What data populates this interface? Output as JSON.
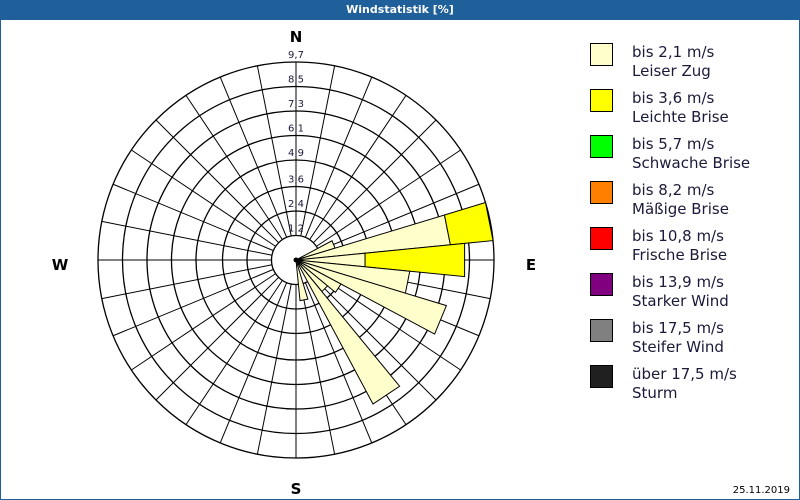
{
  "chart_data": {
    "type": "windrose",
    "title": "Windstatistik [%]",
    "date": "25.11.2019",
    "compass": {
      "n": "N",
      "e": "E",
      "s": "S",
      "w": "W"
    },
    "rmax": 9.7,
    "ring_labels": [
      "1,2",
      "2,4",
      "3,6",
      "4,9",
      "6,1",
      "7,3",
      "8,5",
      "9,7"
    ],
    "ring_values": [
      1.2,
      2.4,
      3.6,
      4.9,
      6.1,
      7.3,
      8.5,
      9.7
    ],
    "sectors": 32,
    "directions_deg": [
      67.5,
      78.75,
      90,
      101.25,
      112.5,
      123.75,
      135,
      146.25,
      168.75
    ],
    "series": [
      {
        "name": "bis 2,1 m/s",
        "color": "#ffffcc",
        "values": [
          2.0,
          7.6,
          3.4,
          5.6,
          7.7,
          2.5,
          2.0,
          8.0,
          2.0
        ]
      },
      {
        "name": "bis 3,6 m/s",
        "color": "#ffff00",
        "values": [
          0,
          2.1,
          4.9,
          0,
          0,
          0,
          0,
          0,
          0
        ]
      }
    ],
    "legend": [
      {
        "line1": "bis 2,1 m/s",
        "line2": "Leiser Zug",
        "color": "#ffffcc"
      },
      {
        "line1": "bis 3,6 m/s",
        "line2": "Leichte Brise",
        "color": "#ffff00"
      },
      {
        "line1": "bis 5,7 m/s",
        "line2": "Schwache Brise",
        "color": "#00ff00"
      },
      {
        "line1": "bis 8,2 m/s",
        "line2": "Mäßige Brise",
        "color": "#ff8000"
      },
      {
        "line1": "bis 10,8 m/s",
        "line2": "Frische Brise",
        "color": "#ff0000"
      },
      {
        "line1": "bis 13,9 m/s",
        "line2": "Starker Wind",
        "color": "#800080"
      },
      {
        "line1": "bis 17,5 m/s",
        "line2": "Steifer Wind",
        "color": "#808080"
      },
      {
        "line1": "über 17,5 m/s",
        "line2": "Sturm",
        "color": "#202020"
      }
    ]
  }
}
